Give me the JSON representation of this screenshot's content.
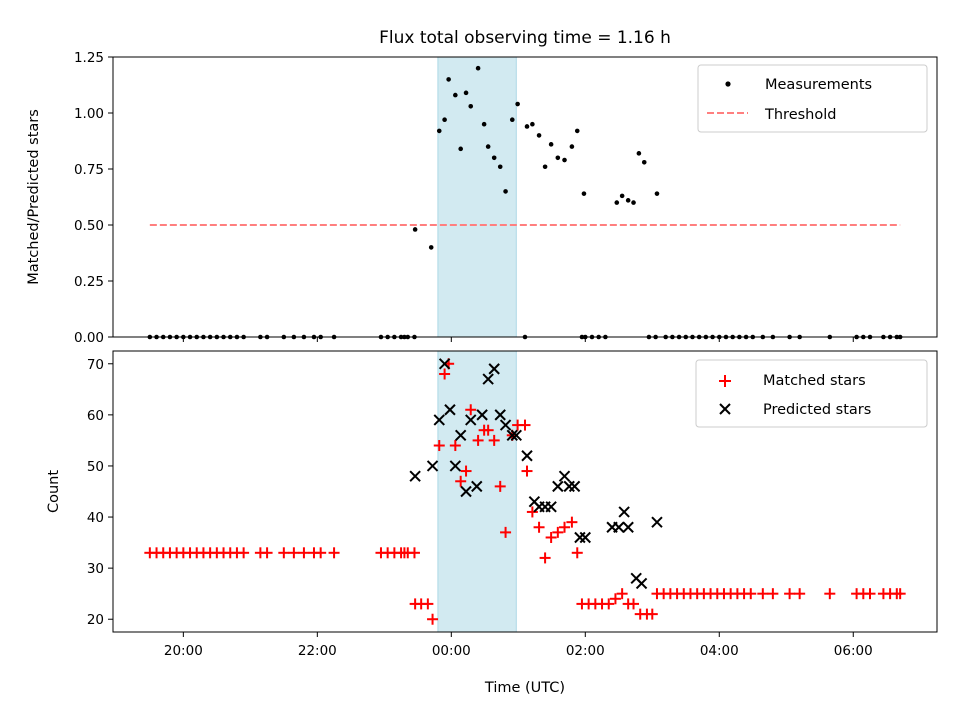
{
  "chart_data": [
    {
      "type": "scatter",
      "title": "Flux total observing time = 1.16 h",
      "xlabel": "",
      "ylabel": "Matched/Predicted stars",
      "x_unit": "hours since 00:00 UTC",
      "xlim": [
        -5.05,
        7.25
      ],
      "ylim": [
        0,
        1.25
      ],
      "yticks": [
        "0.00",
        "0.25",
        "0.50",
        "0.75",
        "1.00",
        "1.25"
      ],
      "ytick_values": [
        0,
        0.25,
        0.5,
        0.75,
        1.0,
        1.25
      ],
      "span": {
        "x0": -0.2,
        "x1": 0.97,
        "color": "#add8e6"
      },
      "legend": [
        "Measurements",
        "Threshold"
      ],
      "threshold": {
        "value": 0.5,
        "x0": -4.5,
        "x1": 6.7,
        "color": "#ff7f7f"
      },
      "series": [
        {
          "name": "Measurements",
          "color": "#000000",
          "points": [
            [
              -4.5,
              0
            ],
            [
              -4.4,
              0
            ],
            [
              -4.3,
              0
            ],
            [
              -4.2,
              0
            ],
            [
              -4.1,
              0
            ],
            [
              -4.0,
              0
            ],
            [
              -3.9,
              0
            ],
            [
              -3.8,
              0
            ],
            [
              -3.7,
              0
            ],
            [
              -3.6,
              0
            ],
            [
              -3.5,
              0
            ],
            [
              -3.4,
              0
            ],
            [
              -3.3,
              0
            ],
            [
              -3.2,
              0
            ],
            [
              -3.1,
              0
            ],
            [
              -2.85,
              0
            ],
            [
              -2.75,
              0
            ],
            [
              -2.5,
              0
            ],
            [
              -2.35,
              0
            ],
            [
              -2.2,
              0
            ],
            [
              -2.05,
              0
            ],
            [
              -1.95,
              0
            ],
            [
              -1.75,
              0
            ],
            [
              -1.05,
              0
            ],
            [
              -0.95,
              0
            ],
            [
              -0.85,
              0
            ],
            [
              -0.75,
              0
            ],
            [
              -0.7,
              0
            ],
            [
              -0.65,
              0
            ],
            [
              -0.55,
              0
            ],
            [
              -0.54,
              0.48
            ],
            [
              -0.3,
              0.4
            ],
            [
              -0.18,
              0.92
            ],
            [
              -0.1,
              0.97
            ],
            [
              -0.04,
              1.15
            ],
            [
              0.06,
              1.08
            ],
            [
              0.14,
              0.84
            ],
            [
              0.22,
              1.09
            ],
            [
              0.29,
              1.03
            ],
            [
              0.4,
              1.2
            ],
            [
              0.49,
              0.95
            ],
            [
              0.55,
              0.85
            ],
            [
              0.64,
              0.8
            ],
            [
              0.73,
              0.76
            ],
            [
              0.81,
              0.65
            ],
            [
              0.91,
              0.97
            ],
            [
              0.99,
              1.04
            ],
            [
              1.1,
              0
            ],
            [
              1.13,
              0.94
            ],
            [
              1.21,
              0.95
            ],
            [
              1.31,
              0.9
            ],
            [
              1.4,
              0.76
            ],
            [
              1.49,
              0.86
            ],
            [
              1.59,
              0.8
            ],
            [
              1.69,
              0.79
            ],
            [
              1.8,
              0.85
            ],
            [
              1.88,
              0.92
            ],
            [
              1.98,
              0.64
            ],
            [
              1.95,
              0
            ],
            [
              2.0,
              0
            ],
            [
              2.1,
              0
            ],
            [
              2.2,
              0
            ],
            [
              2.3,
              0
            ],
            [
              2.47,
              0.6
            ],
            [
              2.55,
              0.63
            ],
            [
              2.64,
              0.61
            ],
            [
              2.72,
              0.6
            ],
            [
              2.8,
              0.82
            ],
            [
              2.88,
              0.78
            ],
            [
              3.07,
              0.64
            ],
            [
              2.95,
              0
            ],
            [
              3.05,
              0
            ],
            [
              3.2,
              0
            ],
            [
              3.3,
              0
            ],
            [
              3.4,
              0
            ],
            [
              3.5,
              0
            ],
            [
              3.6,
              0
            ],
            [
              3.7,
              0
            ],
            [
              3.8,
              0
            ],
            [
              3.9,
              0
            ],
            [
              4.0,
              0
            ],
            [
              4.1,
              0
            ],
            [
              4.2,
              0
            ],
            [
              4.3,
              0
            ],
            [
              4.4,
              0
            ],
            [
              4.5,
              0
            ],
            [
              4.65,
              0
            ],
            [
              4.8,
              0
            ],
            [
              5.05,
              0
            ],
            [
              5.2,
              0
            ],
            [
              5.65,
              0
            ],
            [
              6.05,
              0
            ],
            [
              6.15,
              0
            ],
            [
              6.25,
              0
            ],
            [
              6.45,
              0
            ],
            [
              6.55,
              0
            ],
            [
              6.65,
              0
            ],
            [
              6.7,
              0
            ]
          ]
        }
      ]
    },
    {
      "type": "scatter",
      "title": "",
      "xlabel": "Time (UTC)",
      "ylabel": "Count",
      "x_unit": "hours since 00:00 UTC",
      "xlim": [
        -5.05,
        7.25
      ],
      "ylim": [
        17.5,
        72.5
      ],
      "yticks": [
        "20",
        "30",
        "40",
        "50",
        "60",
        "70"
      ],
      "ytick_values": [
        20,
        30,
        40,
        50,
        60,
        70
      ],
      "xticks": [
        "20:00",
        "22:00",
        "00:00",
        "02:00",
        "04:00",
        "06:00"
      ],
      "xtick_values": [
        -4,
        -2,
        0,
        2,
        4,
        6
      ],
      "span": {
        "x0": -0.2,
        "x1": 0.97,
        "color": "#add8e6"
      },
      "legend": [
        "Matched stars",
        "Predicted stars"
      ],
      "series": [
        {
          "name": "Matched stars",
          "marker": "+",
          "color": "#ff0000",
          "points": [
            [
              -4.5,
              33
            ],
            [
              -4.4,
              33
            ],
            [
              -4.3,
              33
            ],
            [
              -4.2,
              33
            ],
            [
              -4.1,
              33
            ],
            [
              -4.0,
              33
            ],
            [
              -3.9,
              33
            ],
            [
              -3.8,
              33
            ],
            [
              -3.7,
              33
            ],
            [
              -3.6,
              33
            ],
            [
              -3.5,
              33
            ],
            [
              -3.4,
              33
            ],
            [
              -3.3,
              33
            ],
            [
              -3.2,
              33
            ],
            [
              -3.1,
              33
            ],
            [
              -2.85,
              33
            ],
            [
              -2.75,
              33
            ],
            [
              -2.5,
              33
            ],
            [
              -2.35,
              33
            ],
            [
              -2.2,
              33
            ],
            [
              -2.05,
              33
            ],
            [
              -1.95,
              33
            ],
            [
              -1.75,
              33
            ],
            [
              -1.05,
              33
            ],
            [
              -0.95,
              33
            ],
            [
              -0.85,
              33
            ],
            [
              -0.75,
              33
            ],
            [
              -0.7,
              33
            ],
            [
              -0.65,
              33
            ],
            [
              -0.55,
              33
            ],
            [
              -0.54,
              23
            ],
            [
              -0.45,
              23
            ],
            [
              -0.35,
              23
            ],
            [
              -0.28,
              20
            ],
            [
              -0.18,
              54
            ],
            [
              -0.1,
              68
            ],
            [
              -0.04,
              70
            ],
            [
              0.06,
              54
            ],
            [
              0.14,
              47
            ],
            [
              0.22,
              49
            ],
            [
              0.29,
              61
            ],
            [
              0.4,
              55
            ],
            [
              0.49,
              57
            ],
            [
              0.55,
              57
            ],
            [
              0.64,
              55
            ],
            [
              0.73,
              46
            ],
            [
              0.81,
              37
            ],
            [
              0.91,
              56
            ],
            [
              0.99,
              58
            ],
            [
              1.1,
              58
            ],
            [
              1.13,
              49
            ],
            [
              1.21,
              41
            ],
            [
              1.31,
              38
            ],
            [
              1.4,
              32
            ],
            [
              1.49,
              36
            ],
            [
              1.59,
              37
            ],
            [
              1.69,
              38
            ],
            [
              1.8,
              39
            ],
            [
              1.88,
              33
            ],
            [
              1.95,
              23
            ],
            [
              2.05,
              23
            ],
            [
              2.15,
              23
            ],
            [
              2.25,
              23
            ],
            [
              2.35,
              23
            ],
            [
              2.45,
              24
            ],
            [
              2.55,
              25
            ],
            [
              2.64,
              23
            ],
            [
              2.72,
              23
            ],
            [
              2.82,
              21
            ],
            [
              2.92,
              21
            ],
            [
              3.0,
              21
            ],
            [
              3.07,
              25
            ],
            [
              3.17,
              25
            ],
            [
              3.27,
              25
            ],
            [
              3.37,
              25
            ],
            [
              3.47,
              25
            ],
            [
              3.57,
              25
            ],
            [
              3.67,
              25
            ],
            [
              3.77,
              25
            ],
            [
              3.87,
              25
            ],
            [
              3.97,
              25
            ],
            [
              4.07,
              25
            ],
            [
              4.17,
              25
            ],
            [
              4.27,
              25
            ],
            [
              4.37,
              25
            ],
            [
              4.47,
              25
            ],
            [
              4.65,
              25
            ],
            [
              4.8,
              25
            ],
            [
              5.05,
              25
            ],
            [
              5.2,
              25
            ],
            [
              5.65,
              25
            ],
            [
              6.05,
              25
            ],
            [
              6.15,
              25
            ],
            [
              6.25,
              25
            ],
            [
              6.45,
              25
            ],
            [
              6.55,
              25
            ],
            [
              6.65,
              25
            ],
            [
              6.7,
              25
            ]
          ]
        },
        {
          "name": "Predicted stars",
          "marker": "x",
          "color": "#000000",
          "points": [
            [
              -0.54,
              48
            ],
            [
              -0.28,
              50
            ],
            [
              -0.18,
              59
            ],
            [
              -0.1,
              70
            ],
            [
              -0.02,
              61
            ],
            [
              0.06,
              50
            ],
            [
              0.14,
              56
            ],
            [
              0.22,
              45
            ],
            [
              0.29,
              59
            ],
            [
              0.38,
              46
            ],
            [
              0.46,
              60
            ],
            [
              0.55,
              67
            ],
            [
              0.64,
              69
            ],
            [
              0.73,
              60
            ],
            [
              0.81,
              58
            ],
            [
              0.91,
              56
            ],
            [
              0.97,
              56
            ],
            [
              1.13,
              52
            ],
            [
              1.24,
              43
            ],
            [
              1.31,
              42
            ],
            [
              1.4,
              42
            ],
            [
              1.49,
              42
            ],
            [
              1.59,
              46
            ],
            [
              1.69,
              48
            ],
            [
              1.76,
              46
            ],
            [
              1.84,
              46
            ],
            [
              1.92,
              36
            ],
            [
              2.0,
              36
            ],
            [
              2.4,
              38
            ],
            [
              2.5,
              38
            ],
            [
              2.58,
              41
            ],
            [
              2.64,
              38
            ],
            [
              2.76,
              28
            ],
            [
              2.84,
              27
            ],
            [
              3.07,
              39
            ]
          ]
        }
      ]
    }
  ]
}
